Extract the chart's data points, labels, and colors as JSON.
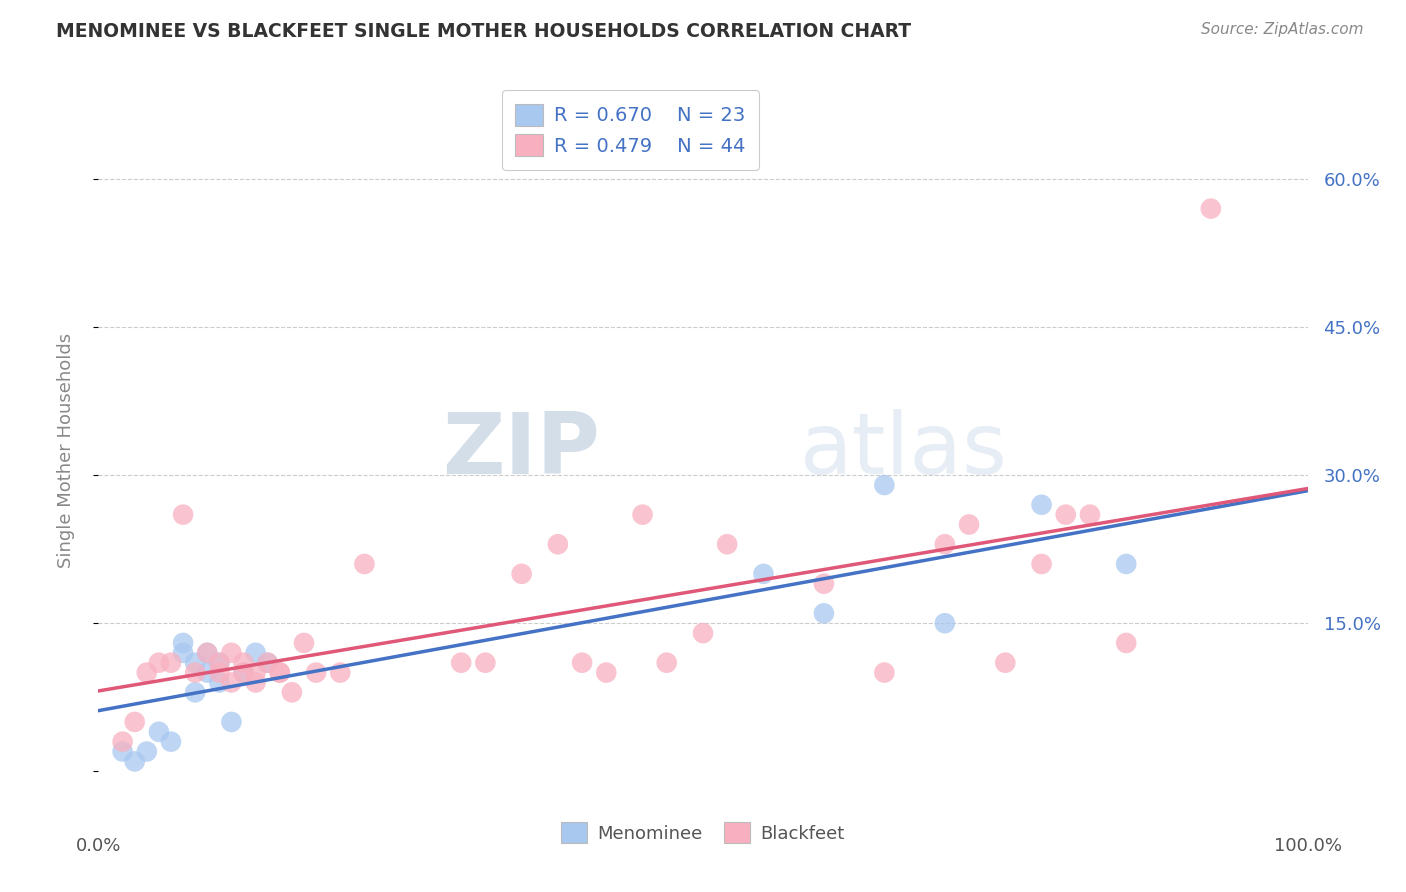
{
  "title": "MENOMINEE VS BLACKFEET SINGLE MOTHER HOUSEHOLDS CORRELATION CHART",
  "source_text": "Source: ZipAtlas.com",
  "ylabel": "Single Mother Households",
  "xlim": [
    0,
    1.0
  ],
  "ylim": [
    -0.05,
    0.7
  ],
  "yticks": [
    0.0,
    0.15,
    0.3,
    0.45,
    0.6
  ],
  "yticklabels": [
    "",
    "15.0%",
    "30.0%",
    "45.0%",
    "60.0%"
  ],
  "xtick_positions": [
    0.0,
    1.0
  ],
  "xticklabels": [
    "0.0%",
    "100.0%"
  ],
  "menominee_color": "#a8c8f0",
  "blackfeet_color": "#f8b0c0",
  "menominee_line_color": "#4472c4",
  "blackfeet_line_color": "#e05878",
  "tick_label_color": "#4472c4",
  "ylabel_color": "#888888",
  "title_color": "#333333",
  "source_color": "#888888",
  "grid_color": "#cccccc",
  "legend_R_menominee": "R = 0.670",
  "legend_N_menominee": "N = 23",
  "legend_R_blackfeet": "R = 0.479",
  "legend_N_blackfeet": "N = 44",
  "watermark_zip": "ZIP",
  "watermark_atlas": "atlas",
  "menominee_x": [
    0.02,
    0.03,
    0.04,
    0.05,
    0.06,
    0.07,
    0.07,
    0.08,
    0.08,
    0.09,
    0.09,
    0.1,
    0.1,
    0.11,
    0.12,
    0.13,
    0.14,
    0.55,
    0.6,
    0.65,
    0.7,
    0.78,
    0.85
  ],
  "menominee_y": [
    0.02,
    0.01,
    0.02,
    0.04,
    0.03,
    0.12,
    0.13,
    0.08,
    0.11,
    0.1,
    0.12,
    0.09,
    0.11,
    0.05,
    0.1,
    0.12,
    0.11,
    0.2,
    0.16,
    0.29,
    0.15,
    0.27,
    0.21
  ],
  "blackfeet_x": [
    0.02,
    0.03,
    0.04,
    0.05,
    0.06,
    0.07,
    0.08,
    0.09,
    0.1,
    0.1,
    0.11,
    0.11,
    0.12,
    0.12,
    0.13,
    0.13,
    0.14,
    0.15,
    0.15,
    0.16,
    0.17,
    0.18,
    0.2,
    0.22,
    0.3,
    0.32,
    0.35,
    0.38,
    0.4,
    0.42,
    0.45,
    0.47,
    0.5,
    0.52,
    0.6,
    0.65,
    0.7,
    0.72,
    0.75,
    0.78,
    0.8,
    0.82,
    0.85,
    0.92
  ],
  "blackfeet_y": [
    0.03,
    0.05,
    0.1,
    0.11,
    0.11,
    0.26,
    0.1,
    0.12,
    0.1,
    0.11,
    0.09,
    0.12,
    0.1,
    0.11,
    0.1,
    0.09,
    0.11,
    0.1,
    0.1,
    0.08,
    0.13,
    0.1,
    0.1,
    0.21,
    0.11,
    0.11,
    0.2,
    0.23,
    0.11,
    0.1,
    0.26,
    0.11,
    0.14,
    0.23,
    0.19,
    0.1,
    0.23,
    0.25,
    0.11,
    0.21,
    0.26,
    0.26,
    0.13,
    0.57
  ]
}
